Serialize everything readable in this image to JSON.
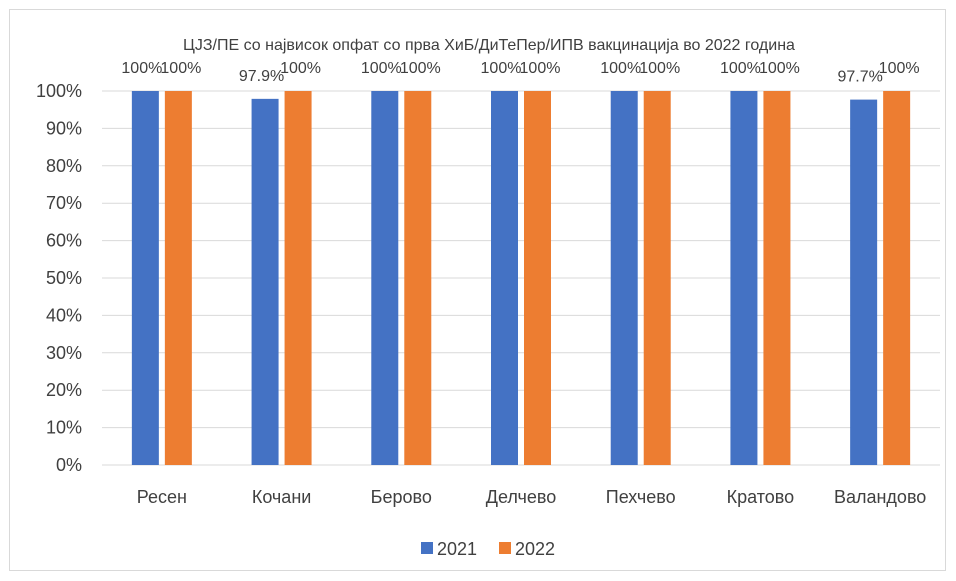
{
  "chart_data": {
    "type": "bar",
    "title": "ЦЈЗ/ПЕ со највисок опфат со прва ХиБ/ДиТеПер/ИПВ вакцинација во 2022 година",
    "categories": [
      "Ресен",
      "Кочани",
      "Берово",
      "Делчево",
      "Пехчево",
      "Кратово",
      "Валандово"
    ],
    "series": [
      {
        "name": "2021",
        "values": [
          100,
          97.9,
          100,
          100,
          100,
          100,
          97.7
        ],
        "labels": [
          "100%",
          "97.9%",
          "100%",
          "100%",
          "100%",
          "100%",
          "97.7%"
        ],
        "color": "#4472c4"
      },
      {
        "name": "2022",
        "values": [
          100,
          100,
          100,
          100,
          100,
          100,
          100
        ],
        "labels": [
          "100%",
          "100%",
          "100%",
          "100%",
          "100%",
          "100%",
          "100%"
        ],
        "color": "#ed7d31"
      }
    ],
    "y_ticks": [
      "0%",
      "10%",
      "20%",
      "30%",
      "40%",
      "50%",
      "60%",
      "70%",
      "80%",
      "90%",
      "100%"
    ],
    "ylim": [
      0,
      100
    ],
    "grid": true,
    "legend_position": "bottom"
  }
}
